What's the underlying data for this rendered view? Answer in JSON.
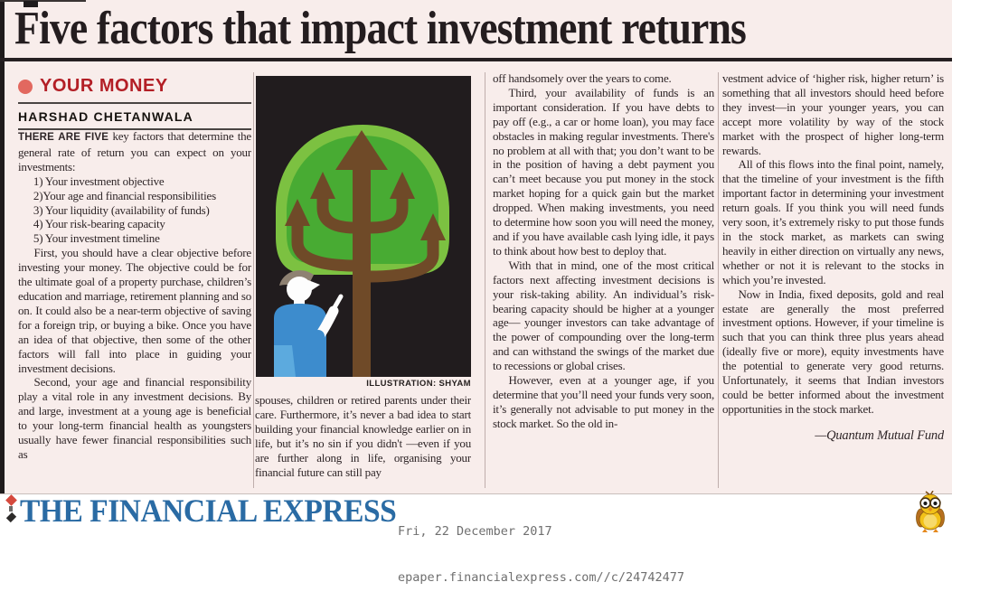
{
  "page": {
    "headline": "Five factors that impact investment returns",
    "section_label": "YOUR MONEY",
    "author": "HARSHAD CHETANWALA",
    "colors": {
      "paper_pink": "#f8edeb",
      "section_red": "#b31f26",
      "section_dot": "#e2685f",
      "masthead_blue": "#2a6ba4",
      "body_text": "#2e2527",
      "illustration_bg": "#211c1e",
      "canopy_outer_green": "#7cc141",
      "canopy_inner_green": "#48ab33",
      "branch_brown": "#6f4a28",
      "shirt_blue": "#3d8ccd"
    }
  },
  "article": {
    "columns": [
      {
        "blocks": [
          {
            "type": "lead",
            "bold": "THERE ARE FIVE",
            "text": " key factors that determine the general rate of return you can expect on your investments:"
          },
          {
            "type": "list",
            "items": [
              "1) Your investment objective",
              "2)Your age and financial responsibilities",
              "3) Your liquidity (availability of funds)",
              "4) Your risk-bearing capacity",
              "5) Your investment timeline"
            ]
          },
          {
            "type": "para",
            "indent": true,
            "text": "First, you should have a clear objective before investing your money. The objective could be for the ultimate goal of a property purchase, children’s education and marriage, retirement planning and so on. It could also be a near-term objective of saving for a foreign trip, or buying a bike. Once you have an idea of that objective, then some of the other factors will fall into place in guiding your investment decisions."
          },
          {
            "type": "para",
            "indent": true,
            "text": "Second, your age and financial responsibility play a vital role in any investment decisions. By and large, investment at a young age is beneficial to your long-term financial health as youngsters usually have fewer financial responsibilities such as"
          }
        ]
      },
      {
        "blocks": [
          {
            "type": "para",
            "indent": false,
            "text": "spouses, children or retired parents under their care. Furthermore, it’s never a bad idea to start building your financial knowledge earlier on in life, but it’s no sin if you didn't —even if you are further along in life, organising your financial future can still pay"
          }
        ]
      },
      {
        "blocks": [
          {
            "type": "para",
            "indent": false,
            "text": "off handsomely over the years to come."
          },
          {
            "type": "para",
            "indent": true,
            "text": "Third, your availability of funds is an important consideration. If you have debts to pay off (e.g., a car or home loan), you may face obstacles in making regular investments. There's no problem at all with that; you don’t want to be in the position of having a debt payment you can’t meet because you put money in the stock market hoping for a quick gain but the market dropped. When making investments, you need to determine how soon you will need the money, and if you have available cash lying idle, it pays to think about how best to deploy that."
          },
          {
            "type": "para",
            "indent": true,
            "text": "With that in mind, one of the most critical factors next affecting investment decisions is your risk-taking ability. An individual’s risk-bearing capacity should be higher at a younger age— younger investors can take advantage of the power of compounding over the long-term and can withstand the swings of the market due to recessions or global crises."
          },
          {
            "type": "para",
            "indent": true,
            "text": "However, even at a younger age, if you determine that you’ll need your funds very soon, it’s generally not advisable to put money in the stock market. So the old in-"
          }
        ]
      },
      {
        "blocks": [
          {
            "type": "para",
            "indent": false,
            "text": "vestment advice of ‘higher risk, higher return’ is something that all investors should heed before they invest—in your younger years, you can accept more volatility by way of the stock market with the prospect of higher long-term rewards."
          },
          {
            "type": "para",
            "indent": true,
            "text": "All of this flows into the final point, namely, that the timeline of your investment is the fifth important factor in determining your investment return goals. If you think you will need funds very soon, it’s extremely risky to put those funds in the stock market, as markets can swing heavily in either direction on virtually any news, whether or not it is relevant to the stocks in which you’re invested."
          },
          {
            "type": "para",
            "indent": true,
            "text": "Now in India, fixed deposits, gold and real estate are generally the most preferred investment options. However, if your timeline is such that you can think three plus years ahead (ideally five or more), equity investments have the potential to generate very good returns. Unfortunately, it seems that Indian investors could be better informed about the investment opportunities in the stock market."
          },
          {
            "type": "attribution",
            "text": "—Quantum Mutual Fund"
          }
        ]
      }
    ]
  },
  "illustration": {
    "caption": "ILLUSTRATION: SHYAM",
    "description": "man in blue shirt pointing at a tree whose branches are upward arrows inside a green canopy"
  },
  "footer": {
    "masthead": "THE FINANCIAL EXPRESS",
    "date": "Fri, 22 December 2017",
    "url": "epaper.financialexpress.com//c/24742477"
  }
}
